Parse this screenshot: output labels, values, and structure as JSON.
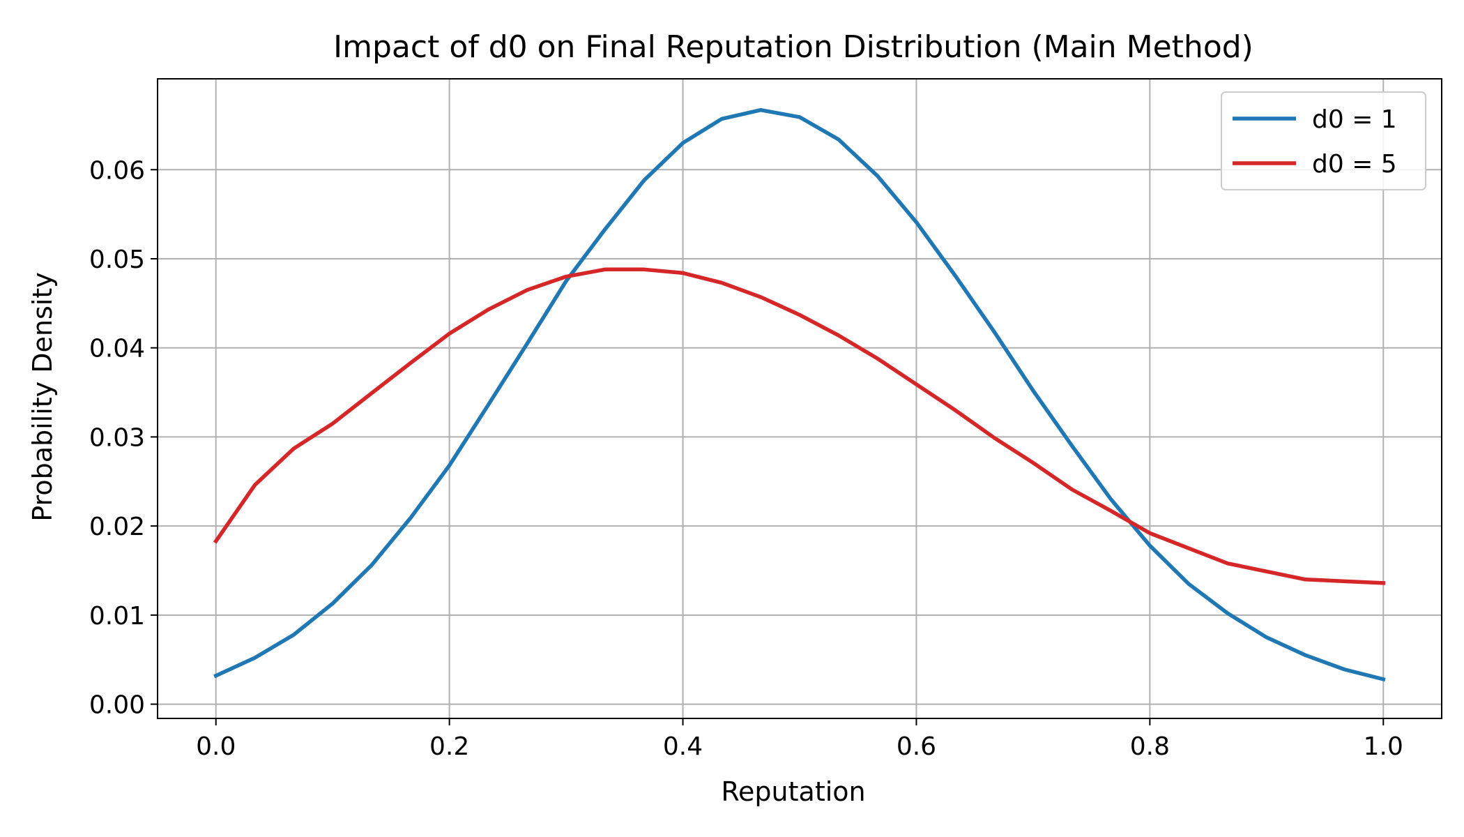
{
  "chart_data": {
    "type": "line",
    "title": "Impact of d0 on Final Reputation Distribution (Main Method)",
    "xlabel": "Reputation",
    "ylabel": "Probability Density",
    "xlim": [
      -0.05,
      1.05
    ],
    "ylim": [
      -0.0016,
      0.0702
    ],
    "xticks": [
      "0.0",
      "0.2",
      "0.4",
      "0.6",
      "0.8",
      "1.0"
    ],
    "yticks": [
      "0.00",
      "0.01",
      "0.02",
      "0.03",
      "0.04",
      "0.05",
      "0.06"
    ],
    "grid": true,
    "legend_position": "top-right",
    "x": [
      0.0,
      0.0333,
      0.0667,
      0.1,
      0.1333,
      0.1667,
      0.2,
      0.2333,
      0.2667,
      0.3,
      0.3333,
      0.3667,
      0.4,
      0.4333,
      0.4667,
      0.5,
      0.5333,
      0.5667,
      0.6,
      0.6333,
      0.6667,
      0.7,
      0.7333,
      0.7667,
      0.8,
      0.8333,
      0.8667,
      0.9,
      0.9333,
      0.9667,
      1.0
    ],
    "series": [
      {
        "name": "d0 = 1",
        "color": "#1f77b4",
        "values": [
          0.0032,
          0.0052,
          0.0078,
          0.0113,
          0.0156,
          0.0209,
          0.0268,
          0.0336,
          0.0405,
          0.0475,
          0.0533,
          0.0588,
          0.063,
          0.0657,
          0.0667,
          0.0659,
          0.0634,
          0.0593,
          0.0541,
          0.0481,
          0.0418,
          0.0352,
          0.029,
          0.023,
          0.0178,
          0.0135,
          0.0102,
          0.0075,
          0.0055,
          0.0039,
          0.0028
        ]
      },
      {
        "name": "d0 = 5",
        "color": "#d62728",
        "values": [
          0.0183,
          0.0246,
          0.0287,
          0.0315,
          0.0349,
          0.0383,
          0.0416,
          0.0443,
          0.0465,
          0.048,
          0.0488,
          0.0488,
          0.0484,
          0.0473,
          0.0457,
          0.0437,
          0.0414,
          0.0388,
          0.0359,
          0.033,
          0.0299,
          0.0271,
          0.0241,
          0.0217,
          0.0192,
          0.0175,
          0.0158,
          0.0149,
          0.014,
          0.0138,
          0.0136
        ]
      }
    ]
  }
}
